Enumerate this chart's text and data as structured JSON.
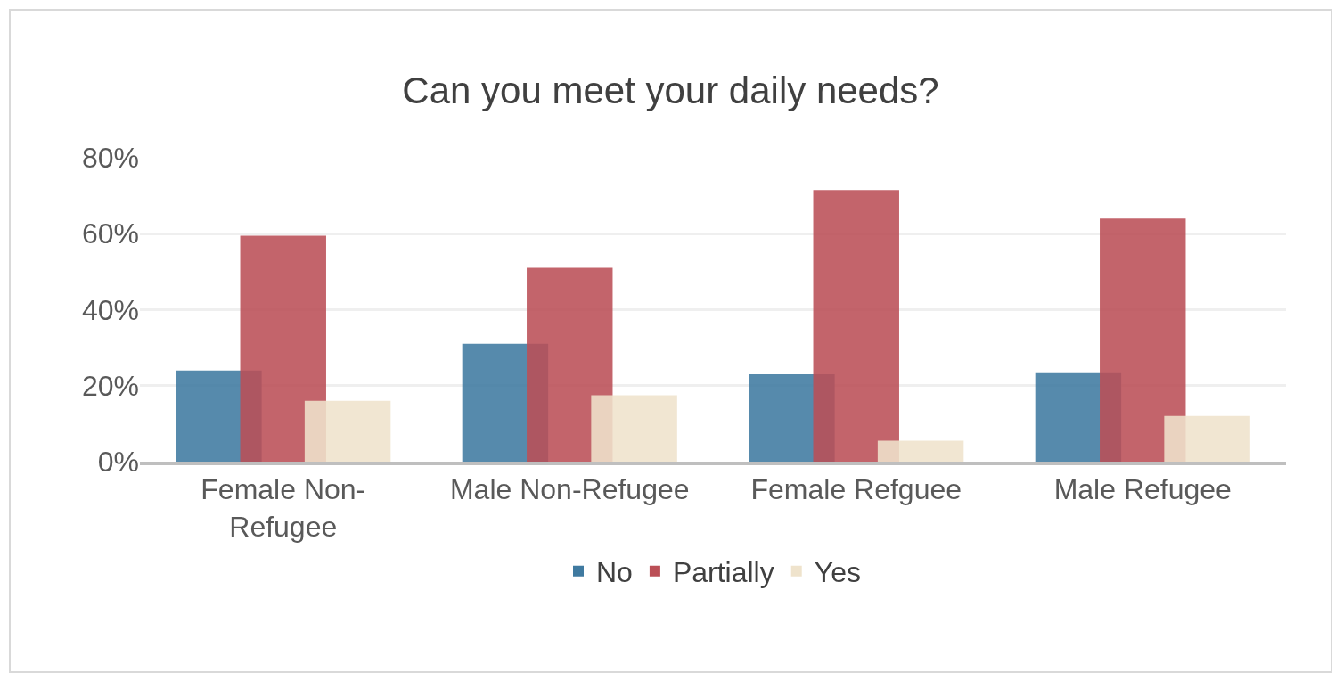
{
  "chart_data": {
    "type": "bar",
    "title": "Can you meet your daily needs?",
    "categories": [
      "Female Non-Refugee",
      "Male Non-Refugee",
      "Female Refguee",
      "Male Refugee"
    ],
    "series": [
      {
        "name": "No",
        "color": "#3f7aa0",
        "values": [
          24,
          31,
          23,
          23.5
        ]
      },
      {
        "name": "Partially",
        "color": "#bb4f56",
        "values": [
          59.5,
          51,
          71.5,
          64
        ]
      },
      {
        "name": "Yes",
        "color": "#efe3cc",
        "values": [
          16,
          17.5,
          5.5,
          12
        ]
      }
    ],
    "ylim": [
      0,
      80
    ],
    "yticks": [
      {
        "value": 0,
        "label": "0%"
      },
      {
        "value": 20,
        "label": "20%"
      },
      {
        "value": 40,
        "label": "40%"
      },
      {
        "value": 60,
        "label": "60%"
      },
      {
        "value": 80,
        "label": "80%"
      }
    ],
    "grid": "y",
    "legend": "bottom"
  }
}
